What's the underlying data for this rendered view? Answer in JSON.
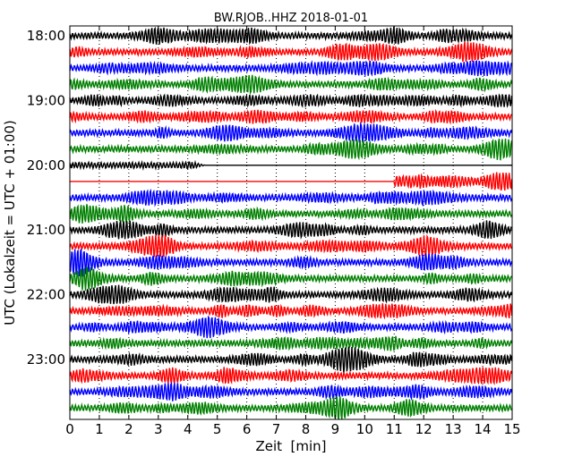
{
  "chart_data": {
    "type": "line",
    "title": "BW.RJOB..HHZ 2018-01-01",
    "xlabel": "Zeit  [min]",
    "ylabel": "UTC (Lokalzeit = UTC + 01:00)",
    "xlim": [
      0,
      15
    ],
    "x_ticks": [
      "0",
      "1",
      "2",
      "3",
      "4",
      "5",
      "6",
      "7",
      "8",
      "9",
      "10",
      "11",
      "12",
      "13",
      "14",
      "15"
    ],
    "y_tick_labels": [
      "18:00",
      "19:00",
      "20:00",
      "21:00",
      "22:00",
      "23:00"
    ],
    "y_tick_rows": [
      0,
      4,
      8,
      12,
      16,
      20
    ],
    "row_minutes": 15,
    "start_time": "18:00",
    "row_count": 24,
    "color_cycle": [
      "#000000",
      "#ff0000",
      "#0000ff",
      "#008000"
    ],
    "grid": {
      "x_vertical_dotted": true,
      "y": false
    },
    "rows": [
      {
        "time": "18:00",
        "color": "#000000",
        "status": "signal"
      },
      {
        "time": "18:15",
        "color": "#ff0000",
        "status": "signal"
      },
      {
        "time": "18:30",
        "color": "#0000ff",
        "status": "signal"
      },
      {
        "time": "18:45",
        "color": "#008000",
        "status": "signal"
      },
      {
        "time": "19:00",
        "color": "#000000",
        "status": "signal"
      },
      {
        "time": "19:15",
        "color": "#ff0000",
        "status": "signal"
      },
      {
        "time": "19:30",
        "color": "#0000ff",
        "status": "signal"
      },
      {
        "time": "19:45",
        "color": "#008000",
        "status": "signal"
      },
      {
        "time": "20:00",
        "color": "#000000",
        "status": "signal_until",
        "end_minute": 4.6
      },
      {
        "time": "20:15",
        "color": "#ff0000",
        "status": "signal_from",
        "start_minute": 11.0
      },
      {
        "time": "20:30",
        "color": "#0000ff",
        "status": "signal"
      },
      {
        "time": "20:45",
        "color": "#008000",
        "status": "signal"
      },
      {
        "time": "21:00",
        "color": "#000000",
        "status": "signal"
      },
      {
        "time": "21:15",
        "color": "#ff0000",
        "status": "signal"
      },
      {
        "time": "21:30",
        "color": "#0000ff",
        "status": "signal"
      },
      {
        "time": "21:45",
        "color": "#008000",
        "status": "signal"
      },
      {
        "time": "22:00",
        "color": "#000000",
        "status": "signal"
      },
      {
        "time": "22:15",
        "color": "#ff0000",
        "status": "signal"
      },
      {
        "time": "22:30",
        "color": "#0000ff",
        "status": "signal"
      },
      {
        "time": "22:45",
        "color": "#008000",
        "status": "signal"
      },
      {
        "time": "23:00",
        "color": "#000000",
        "status": "signal"
      },
      {
        "time": "23:15",
        "color": "#ff0000",
        "status": "signal"
      },
      {
        "time": "23:30",
        "color": "#0000ff",
        "status": "signal"
      },
      {
        "time": "23:45",
        "color": "#008000",
        "status": "signal"
      }
    ]
  }
}
